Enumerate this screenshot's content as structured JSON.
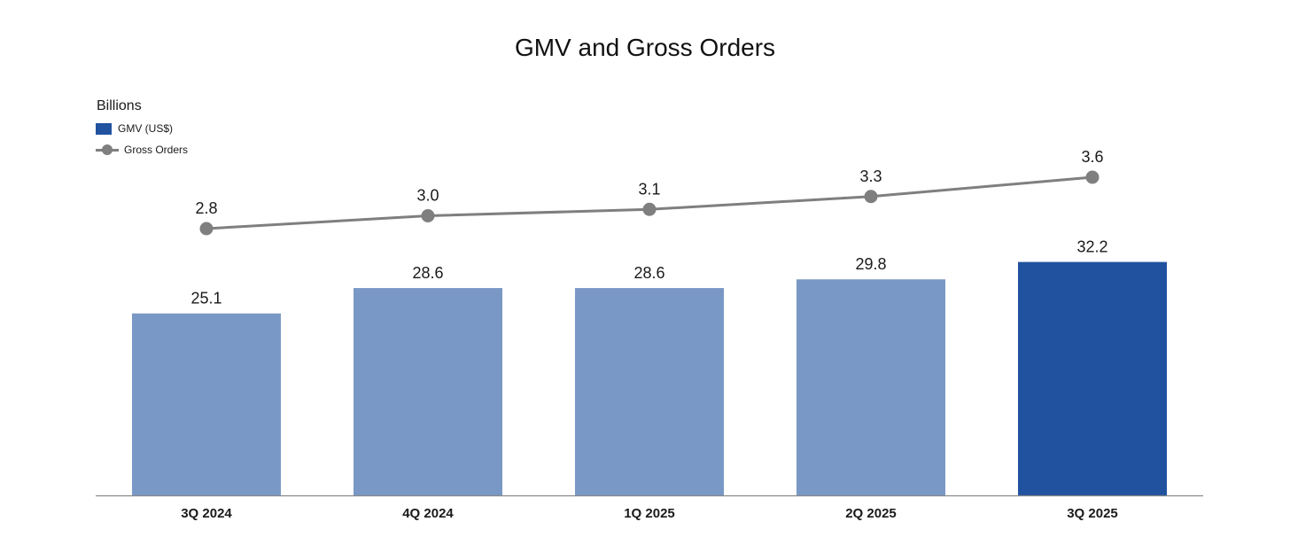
{
  "chart_data": {
    "type": "bar",
    "title": "GMV and Gross Orders",
    "unit_label": "Billions",
    "categories": [
      "3Q 2024",
      "4Q 2024",
      "1Q 2025",
      "2Q 2025",
      "3Q 2025"
    ],
    "series": [
      {
        "name": "GMV (US$)",
        "type": "bar",
        "values": [
          25.1,
          28.6,
          28.6,
          29.8,
          32.2
        ],
        "labels": [
          "25.1",
          "28.6",
          "28.6",
          "29.8",
          "32.2"
        ],
        "color": "#7a98c5",
        "highlight_color": "#2152a0",
        "highlight_index": 4
      },
      {
        "name": "Gross Orders",
        "type": "line",
        "values": [
          2.8,
          3.0,
          3.1,
          3.3,
          3.6
        ],
        "labels": [
          "2.8",
          "3.0",
          "3.1",
          "3.3",
          "3.6"
        ],
        "color": "#7f7f7f"
      }
    ],
    "legend_position": "top-left",
    "grid": false
  }
}
